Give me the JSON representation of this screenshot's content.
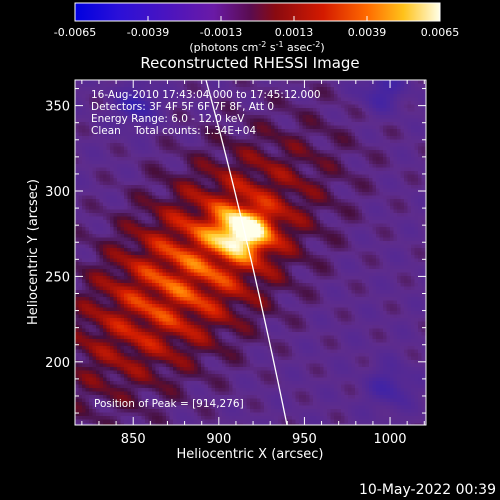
{
  "colorbar": {
    "ticks": [
      "-0.0065",
      "-0.0039",
      "-0.0013",
      "0.0013",
      "0.0039",
      "0.0065"
    ],
    "unit_text": "(photons cm",
    "unit_sup1": "-2",
    "unit_mid1": " s",
    "unit_sup2": "-1",
    "unit_mid2": " asec",
    "unit_sup3": "-2",
    "unit_end": ")"
  },
  "chart_data": {
    "type": "heatmap",
    "title": "Reconstructed RHESSI Image",
    "xlabel": "Heliocentric X (arcsec)",
    "ylabel": "Heliocentric Y (arcsec)",
    "xlim": [
      816,
      1021
    ],
    "ylim": [
      163,
      365
    ],
    "x_ticks": [
      850,
      900,
      950,
      1000
    ],
    "y_ticks": [
      200,
      250,
      300,
      350
    ],
    "color_range": [
      -0.0065,
      0.0065
    ],
    "peak": {
      "x": 914,
      "y": 276
    },
    "annotations": [
      "16-Aug-2010 17:43:04.000 to 17:45:12.000",
      "Detectors: 3F 4F 5F 6F 7F 8F, Att 0",
      "Energy Range: 6.0 - 12.0 keV",
      "Clean    Total counts: 1.34E+04"
    ],
    "peak_label": "Position of Peak = [914,276]"
  },
  "timestamp": "10-May-2022 00:39"
}
